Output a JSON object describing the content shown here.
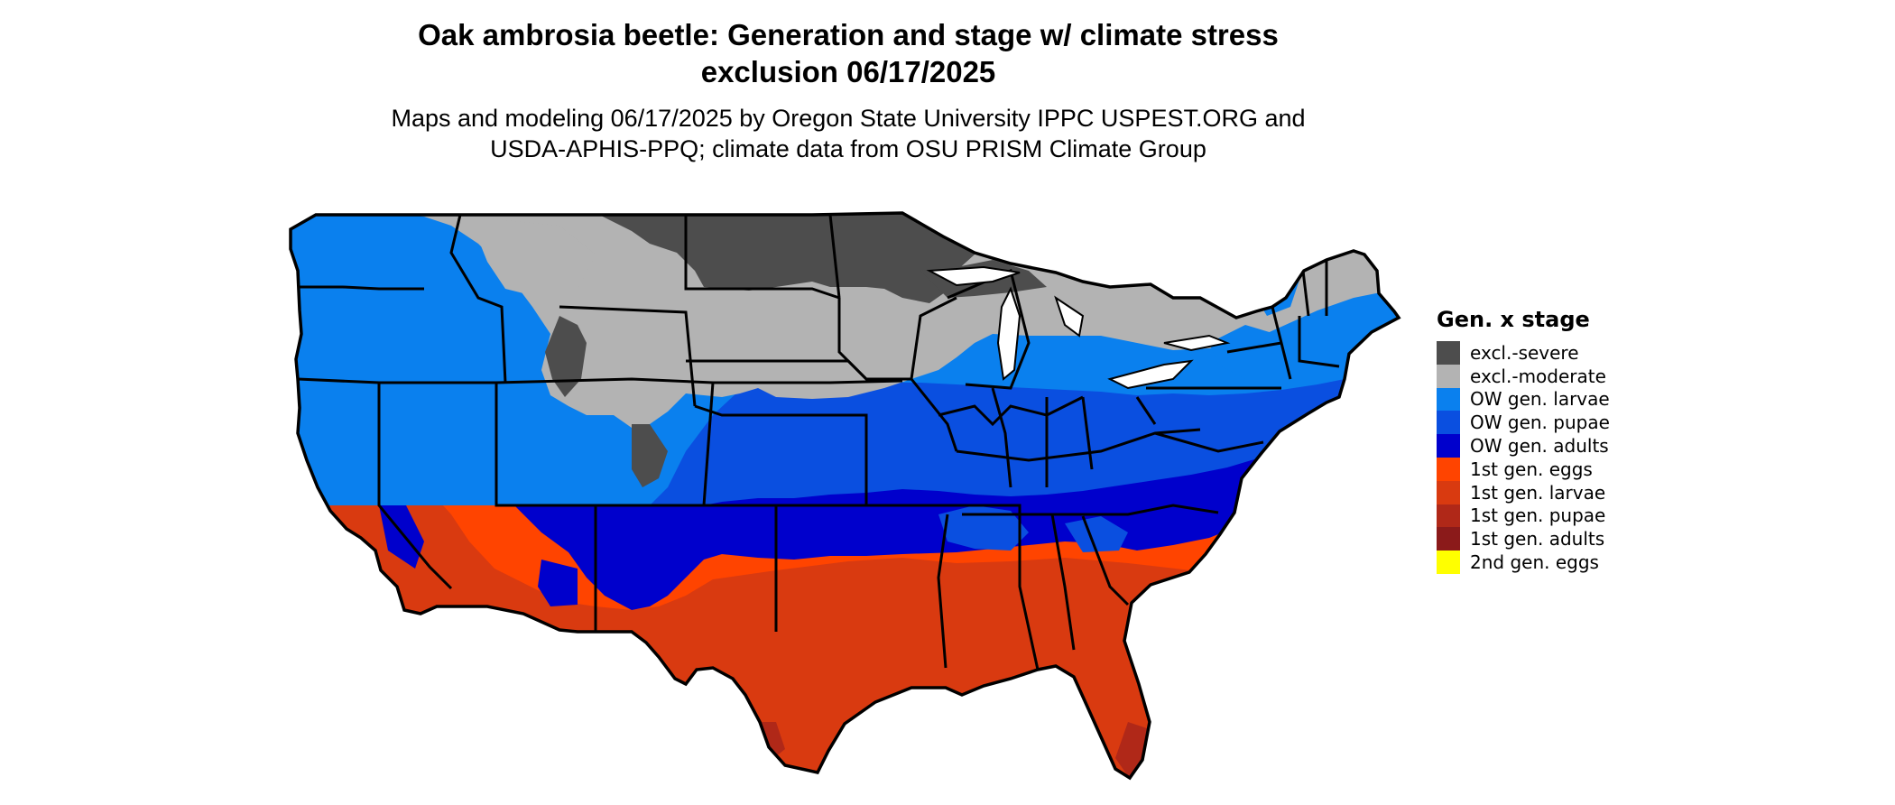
{
  "title_line1": "Oak ambrosia beetle: Generation and stage w/ climate stress",
  "title_line2": "exclusion 06/17/2025",
  "subtitle_line1": "Maps and modeling 06/17/2025 by Oregon State University IPPC USPEST.ORG and",
  "subtitle_line2": "USDA-APHIS-PPQ; climate data from OSU PRISM Climate Group",
  "legend": {
    "title": "Gen. x stage",
    "items": [
      {
        "label": "excl.-severe",
        "color": "#4d4d4d"
      },
      {
        "label": "excl.-moderate",
        "color": "#b3b3b3"
      },
      {
        "label": "OW gen. larvae",
        "color": "#0a80ee"
      },
      {
        "label": "OW gen. pupae",
        "color": "#0a4fe0"
      },
      {
        "label": "OW gen. adults",
        "color": "#0000cc"
      },
      {
        "label": "1st gen. eggs",
        "color": "#ff4400"
      },
      {
        "label": "1st gen. larvae",
        "color": "#d93a10"
      },
      {
        "label": "1st gen. pupae",
        "color": "#b02818"
      },
      {
        "label": "1st gen. adults",
        "color": "#8b1a1a"
      },
      {
        "label": "2nd gen. eggs",
        "color": "#ffff00"
      }
    ]
  }
}
